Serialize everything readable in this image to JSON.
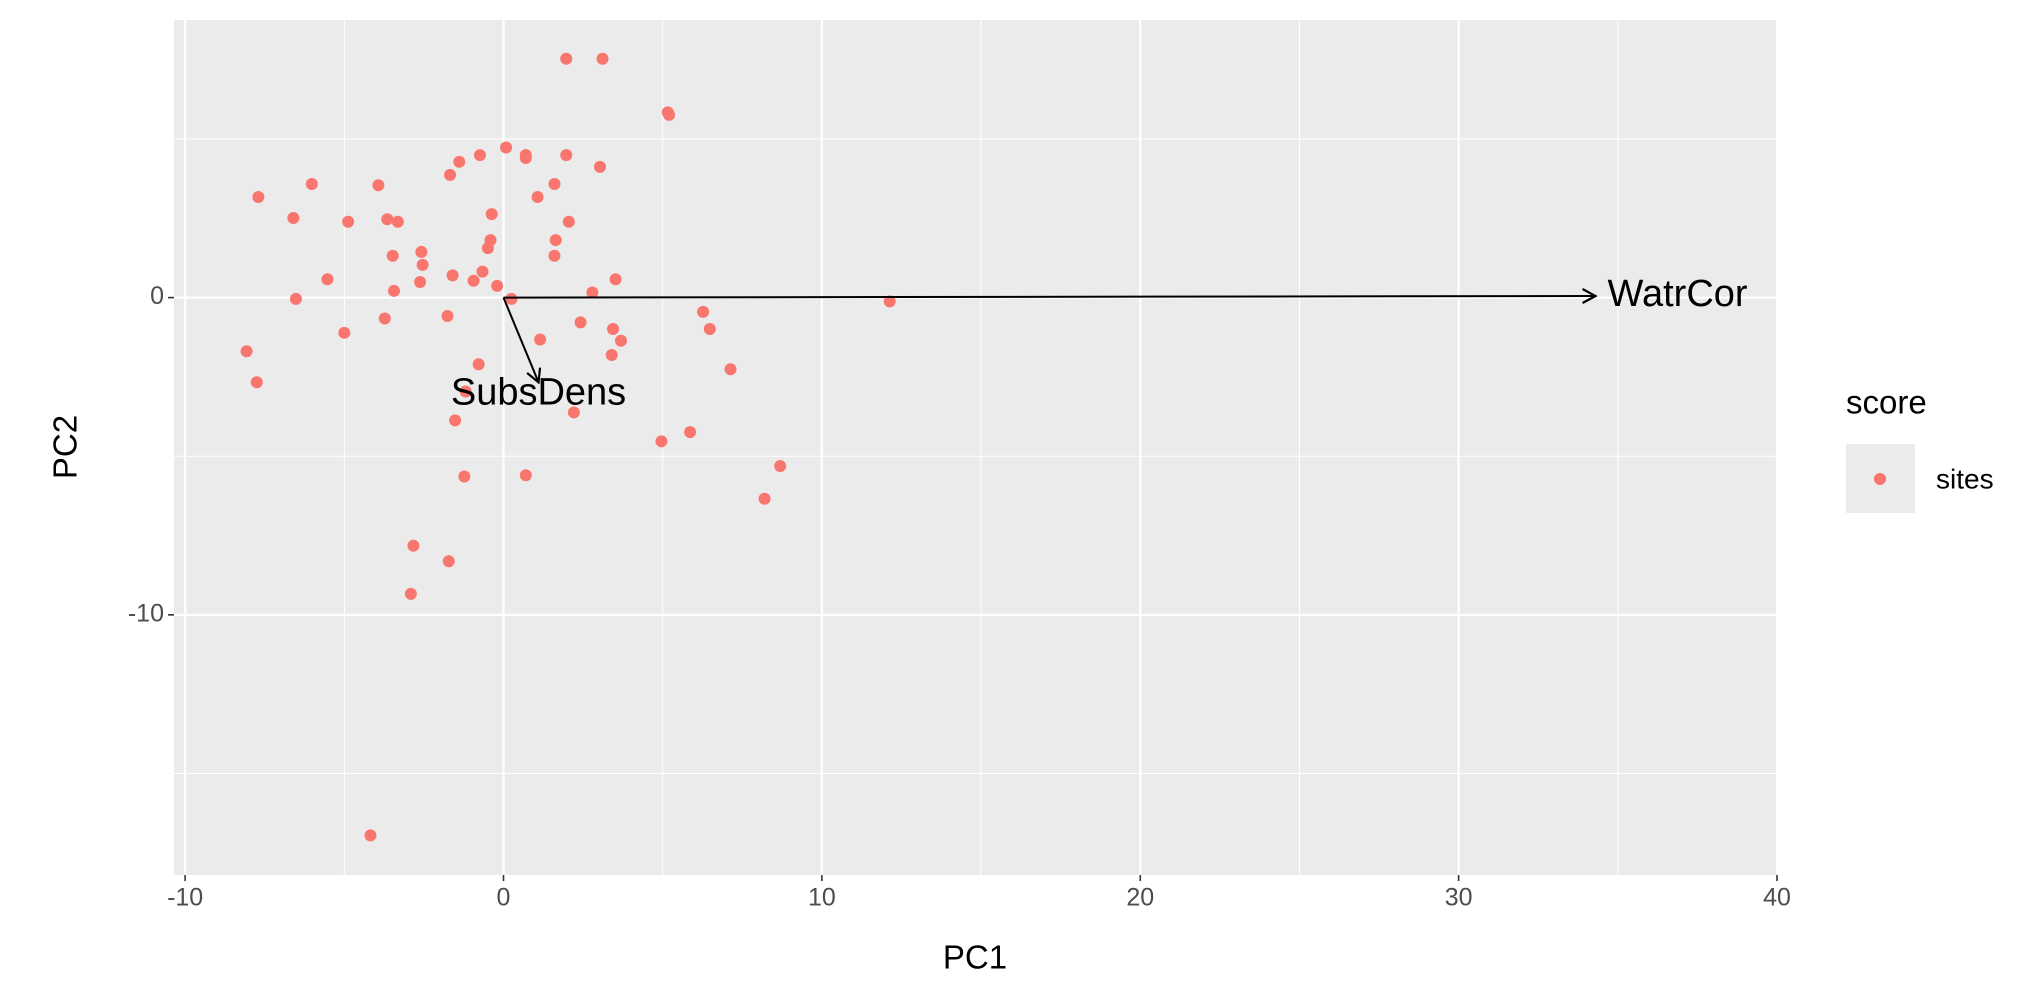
{
  "chart_data": {
    "type": "scatter",
    "x_label": "PC1",
    "y_label": "PC2",
    "xlim": [
      -10.35,
      40
    ],
    "ylim": [
      -18.2,
      8.75
    ],
    "xticks": [
      -10,
      0,
      10,
      20,
      30,
      40
    ],
    "yticks": [
      -10,
      0
    ],
    "x_minor_grid": [
      -5,
      5,
      15,
      25,
      35
    ],
    "y_minor_grid": [
      -15,
      -5,
      5
    ],
    "grid": true,
    "legend_title": "score",
    "legend_position": "right",
    "series": [
      {
        "name": "sites",
        "color": "#F8766D",
        "x": [
          1.97,
          3.11,
          5.16,
          5.2,
          0.08,
          0.7,
          0.7,
          1.97,
          -0.74,
          -1.39,
          -1.68,
          3.03,
          1.6,
          -6.02,
          -3.93,
          -7.7,
          1.07,
          -0.37,
          -6.6,
          -4.88,
          -3.65,
          -3.32,
          2.05,
          1.64,
          -0.41,
          -0.49,
          -2.58,
          -3.48,
          1.6,
          -2.54,
          -0.66,
          -1.6,
          -0.94,
          -2.62,
          -5.53,
          3.52,
          -0.2,
          -3.44,
          2.79,
          -6.52,
          0.25,
          12.13,
          6.27,
          -3.73,
          -1.76,
          2.42,
          6.48,
          3.44,
          -5.0,
          1.15,
          3.69,
          -8.07,
          3.4,
          -0.78,
          7.13,
          -7.75,
          -1.19,
          2.21,
          -1.52,
          5.86,
          4.96,
          8.69,
          -1.23,
          0.7,
          8.2,
          -2.83,
          -1.72,
          -2.91,
          -4.18
        ],
        "y": [
          7.53,
          7.53,
          5.84,
          5.76,
          4.73,
          4.49,
          4.4,
          4.49,
          4.49,
          4.28,
          3.87,
          4.12,
          3.58,
          3.58,
          3.54,
          3.17,
          3.17,
          2.63,
          2.51,
          2.39,
          2.47,
          2.39,
          2.39,
          1.81,
          1.81,
          1.56,
          1.44,
          1.32,
          1.32,
          1.03,
          0.82,
          0.7,
          0.53,
          0.49,
          0.58,
          0.58,
          0.37,
          0.21,
          0.16,
          -0.04,
          -0.04,
          -0.12,
          -0.45,
          -0.66,
          -0.58,
          -0.78,
          -0.99,
          -0.99,
          -1.11,
          -1.32,
          -1.36,
          -1.69,
          -1.81,
          -2.1,
          -2.26,
          -2.67,
          -2.96,
          -3.62,
          -3.87,
          -4.24,
          -4.53,
          -5.31,
          -5.64,
          -5.6,
          -6.34,
          -7.82,
          -8.31,
          -9.34,
          -16.95
        ]
      }
    ],
    "arrows": [
      {
        "label": "WatrCor",
        "x": 34.3,
        "y": 0.05
      },
      {
        "label": "SubsDens",
        "x": 1.1,
        "y": -2.67
      }
    ]
  }
}
